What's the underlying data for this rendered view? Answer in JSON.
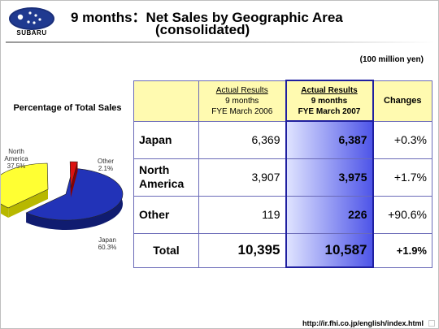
{
  "header": {
    "logo_text": "SUBARU",
    "title_line1": "9 months：Net Sales by Geographic Area",
    "title_line2": "(consolidated)"
  },
  "unit_note": "(100 million yen)",
  "pie": {
    "title": "Percentage of Total Sales",
    "labels": {
      "north_america": [
        "North",
        "America",
        "37.5%"
      ],
      "other": [
        "Other",
        "2.1%"
      ],
      "japan": [
        "Japan",
        "60.3%"
      ]
    }
  },
  "table": {
    "headers": {
      "col2006": [
        "Actual Results",
        "9 months",
        "FYE March 2006"
      ],
      "col2007": [
        "Actual Results",
        "9 months",
        "FYE March 2007"
      ],
      "changes": "Changes"
    },
    "rows": [
      {
        "label": "Japan",
        "v2006": "6,369",
        "v2007": "6,387",
        "change": "+0.3%"
      },
      {
        "label": "North America",
        "v2006": "3,907",
        "v2007": "3,975",
        "change": "+1.7%"
      },
      {
        "label": "Other",
        "v2006": "119",
        "v2007": "226",
        "change": "+90.6%"
      },
      {
        "label": "Total",
        "v2006": "10,395",
        "v2007": "10,587",
        "change": "+1.9%"
      }
    ]
  },
  "chart_data": {
    "type": "pie",
    "title": "Percentage of Total Sales",
    "categories": [
      "Japan",
      "North America",
      "Other"
    ],
    "values": [
      60.3,
      37.5,
      2.1
    ],
    "colors": [
      "#2233b8",
      "#ffff33",
      "#dd1111"
    ]
  },
  "footer": {
    "url": "http://ir.fhi.co.jp/english/index.html"
  }
}
